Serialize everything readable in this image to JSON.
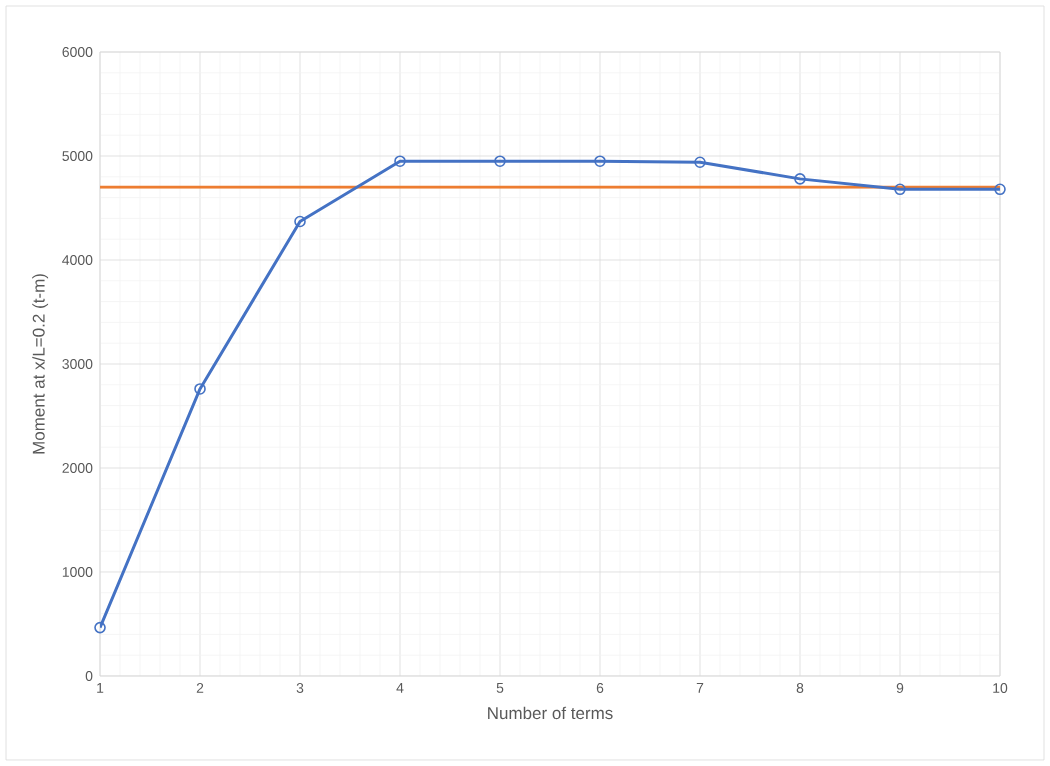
{
  "chart_data": {
    "type": "line",
    "xlabel": "Number of terms",
    "ylabel": "Moment at x/L=0.2 (t-m)",
    "x": [
      1,
      2,
      3,
      4,
      5,
      6,
      7,
      8,
      9,
      10
    ],
    "series": [
      {
        "color": "#4472c4",
        "values": [
          465,
          2760,
          4370,
          4950,
          4950,
          4950,
          4940,
          4780,
          4680,
          4680
        ]
      }
    ],
    "ref_lines": [
      {
        "axis": "y",
        "value": 4700,
        "color": "#ed7d31"
      }
    ],
    "xlim": [
      1,
      10
    ],
    "xticks": [
      1,
      2,
      3,
      4,
      5,
      6,
      7,
      8,
      9,
      10
    ],
    "ylim": [
      0,
      6000
    ],
    "yticks": [
      0,
      1000,
      2000,
      3000,
      4000,
      5000,
      6000
    ],
    "grid": true,
    "marker": "circle",
    "line_style": "solid"
  }
}
